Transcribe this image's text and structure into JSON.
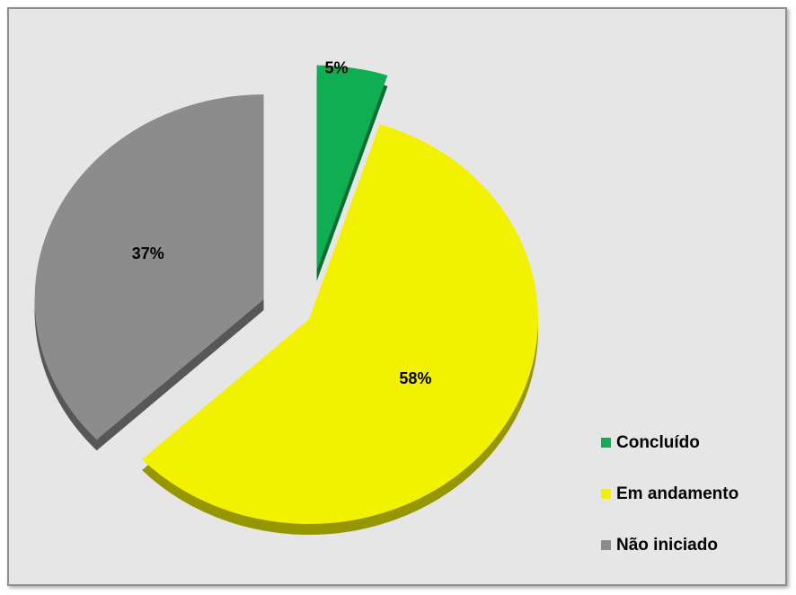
{
  "chart_data": {
    "type": "pie",
    "title": "",
    "slices": [
      {
        "label": "Concluído",
        "value": 5,
        "display": "5%",
        "color": "#0fae52"
      },
      {
        "label": "Em andamento",
        "value": 58,
        "display": "58%",
        "color": "#f2f200"
      },
      {
        "label": "Não iniciado",
        "value": 37,
        "display": "37%",
        "color": "#8c8c8c"
      }
    ],
    "legend_position": "bottom-right",
    "exploded": true,
    "style": "3d"
  },
  "colors": {
    "background": "#e6e6e6",
    "border": "#8f8f8f"
  }
}
